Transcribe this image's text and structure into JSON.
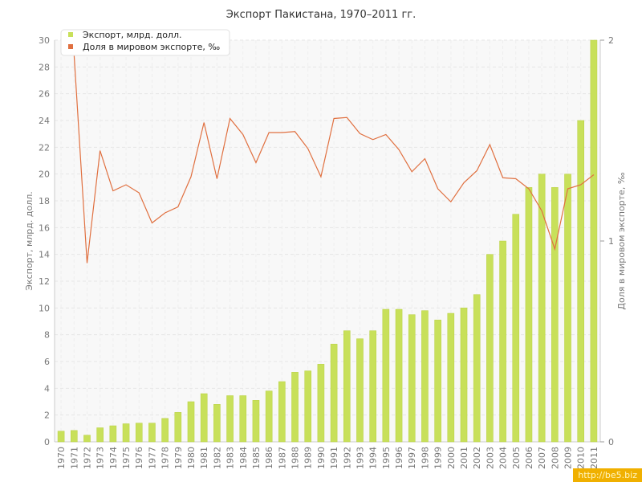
{
  "chart_data": {
    "type": "bar",
    "title": "Экспорт Пакистана, 1970–2011 гг.",
    "categories": [
      "1970",
      "1971",
      "1972",
      "1973",
      "1974",
      "1975",
      "1976",
      "1977",
      "1978",
      "1979",
      "1980",
      "1981",
      "1982",
      "1983",
      "1984",
      "1985",
      "1986",
      "1987",
      "1988",
      "1989",
      "1990",
      "1991",
      "1992",
      "1993",
      "1994",
      "1995",
      "1996",
      "1997",
      "1998",
      "1999",
      "2000",
      "2001",
      "2002",
      "2003",
      "2004",
      "2005",
      "2006",
      "2007",
      "2008",
      "2009",
      "2010",
      "2011"
    ],
    "series": [
      {
        "name": "Экспорт, млрд. долл.",
        "type": "bar",
        "axis": "left",
        "color": "#c8e05a",
        "values": [
          0.8,
          0.85,
          0.5,
          1.05,
          1.2,
          1.35,
          1.4,
          1.4,
          1.75,
          2.2,
          3.0,
          3.6,
          2.8,
          3.45,
          3.45,
          3.1,
          3.8,
          4.5,
          5.2,
          5.3,
          5.8,
          7.3,
          8.3,
          7.7,
          8.3,
          9.9,
          9.9,
          9.5,
          9.8,
          9.1,
          9.6,
          10.0,
          11.0,
          14.0,
          15.0,
          17.0,
          19.0,
          20.0,
          19.0,
          20.0,
          24.0,
          30.0
        ]
      },
      {
        "name": "Доля в мировом экспорте, ‰",
        "type": "line",
        "axis": "right",
        "color": "#e07040",
        "values": [
          2.0,
          1.93,
          0.89,
          1.45,
          1.25,
          1.28,
          1.24,
          1.09,
          1.14,
          1.17,
          1.32,
          1.59,
          1.31,
          1.61,
          1.53,
          1.39,
          1.54,
          1.54,
          1.545,
          1.46,
          1.32,
          1.61,
          1.615,
          1.535,
          1.505,
          1.53,
          1.455,
          1.345,
          1.41,
          1.26,
          1.195,
          1.29,
          1.35,
          1.48,
          1.315,
          1.31,
          1.26,
          1.15,
          0.96,
          1.26,
          1.28,
          1.33
        ]
      }
    ],
    "ylabel": "Экспорт, млрд. долл.",
    "ylim": [
      0,
      30
    ],
    "yticks": [
      0,
      2,
      4,
      6,
      8,
      10,
      12,
      14,
      16,
      18,
      20,
      22,
      24,
      26,
      28,
      30
    ],
    "y2label": "Доля в мировом экспорте, ‰",
    "y2lim": [
      0,
      2
    ],
    "y2ticks": [
      0,
      1,
      2
    ],
    "grid": true,
    "legend": "top-left"
  },
  "watermark": "http://be5.biz"
}
